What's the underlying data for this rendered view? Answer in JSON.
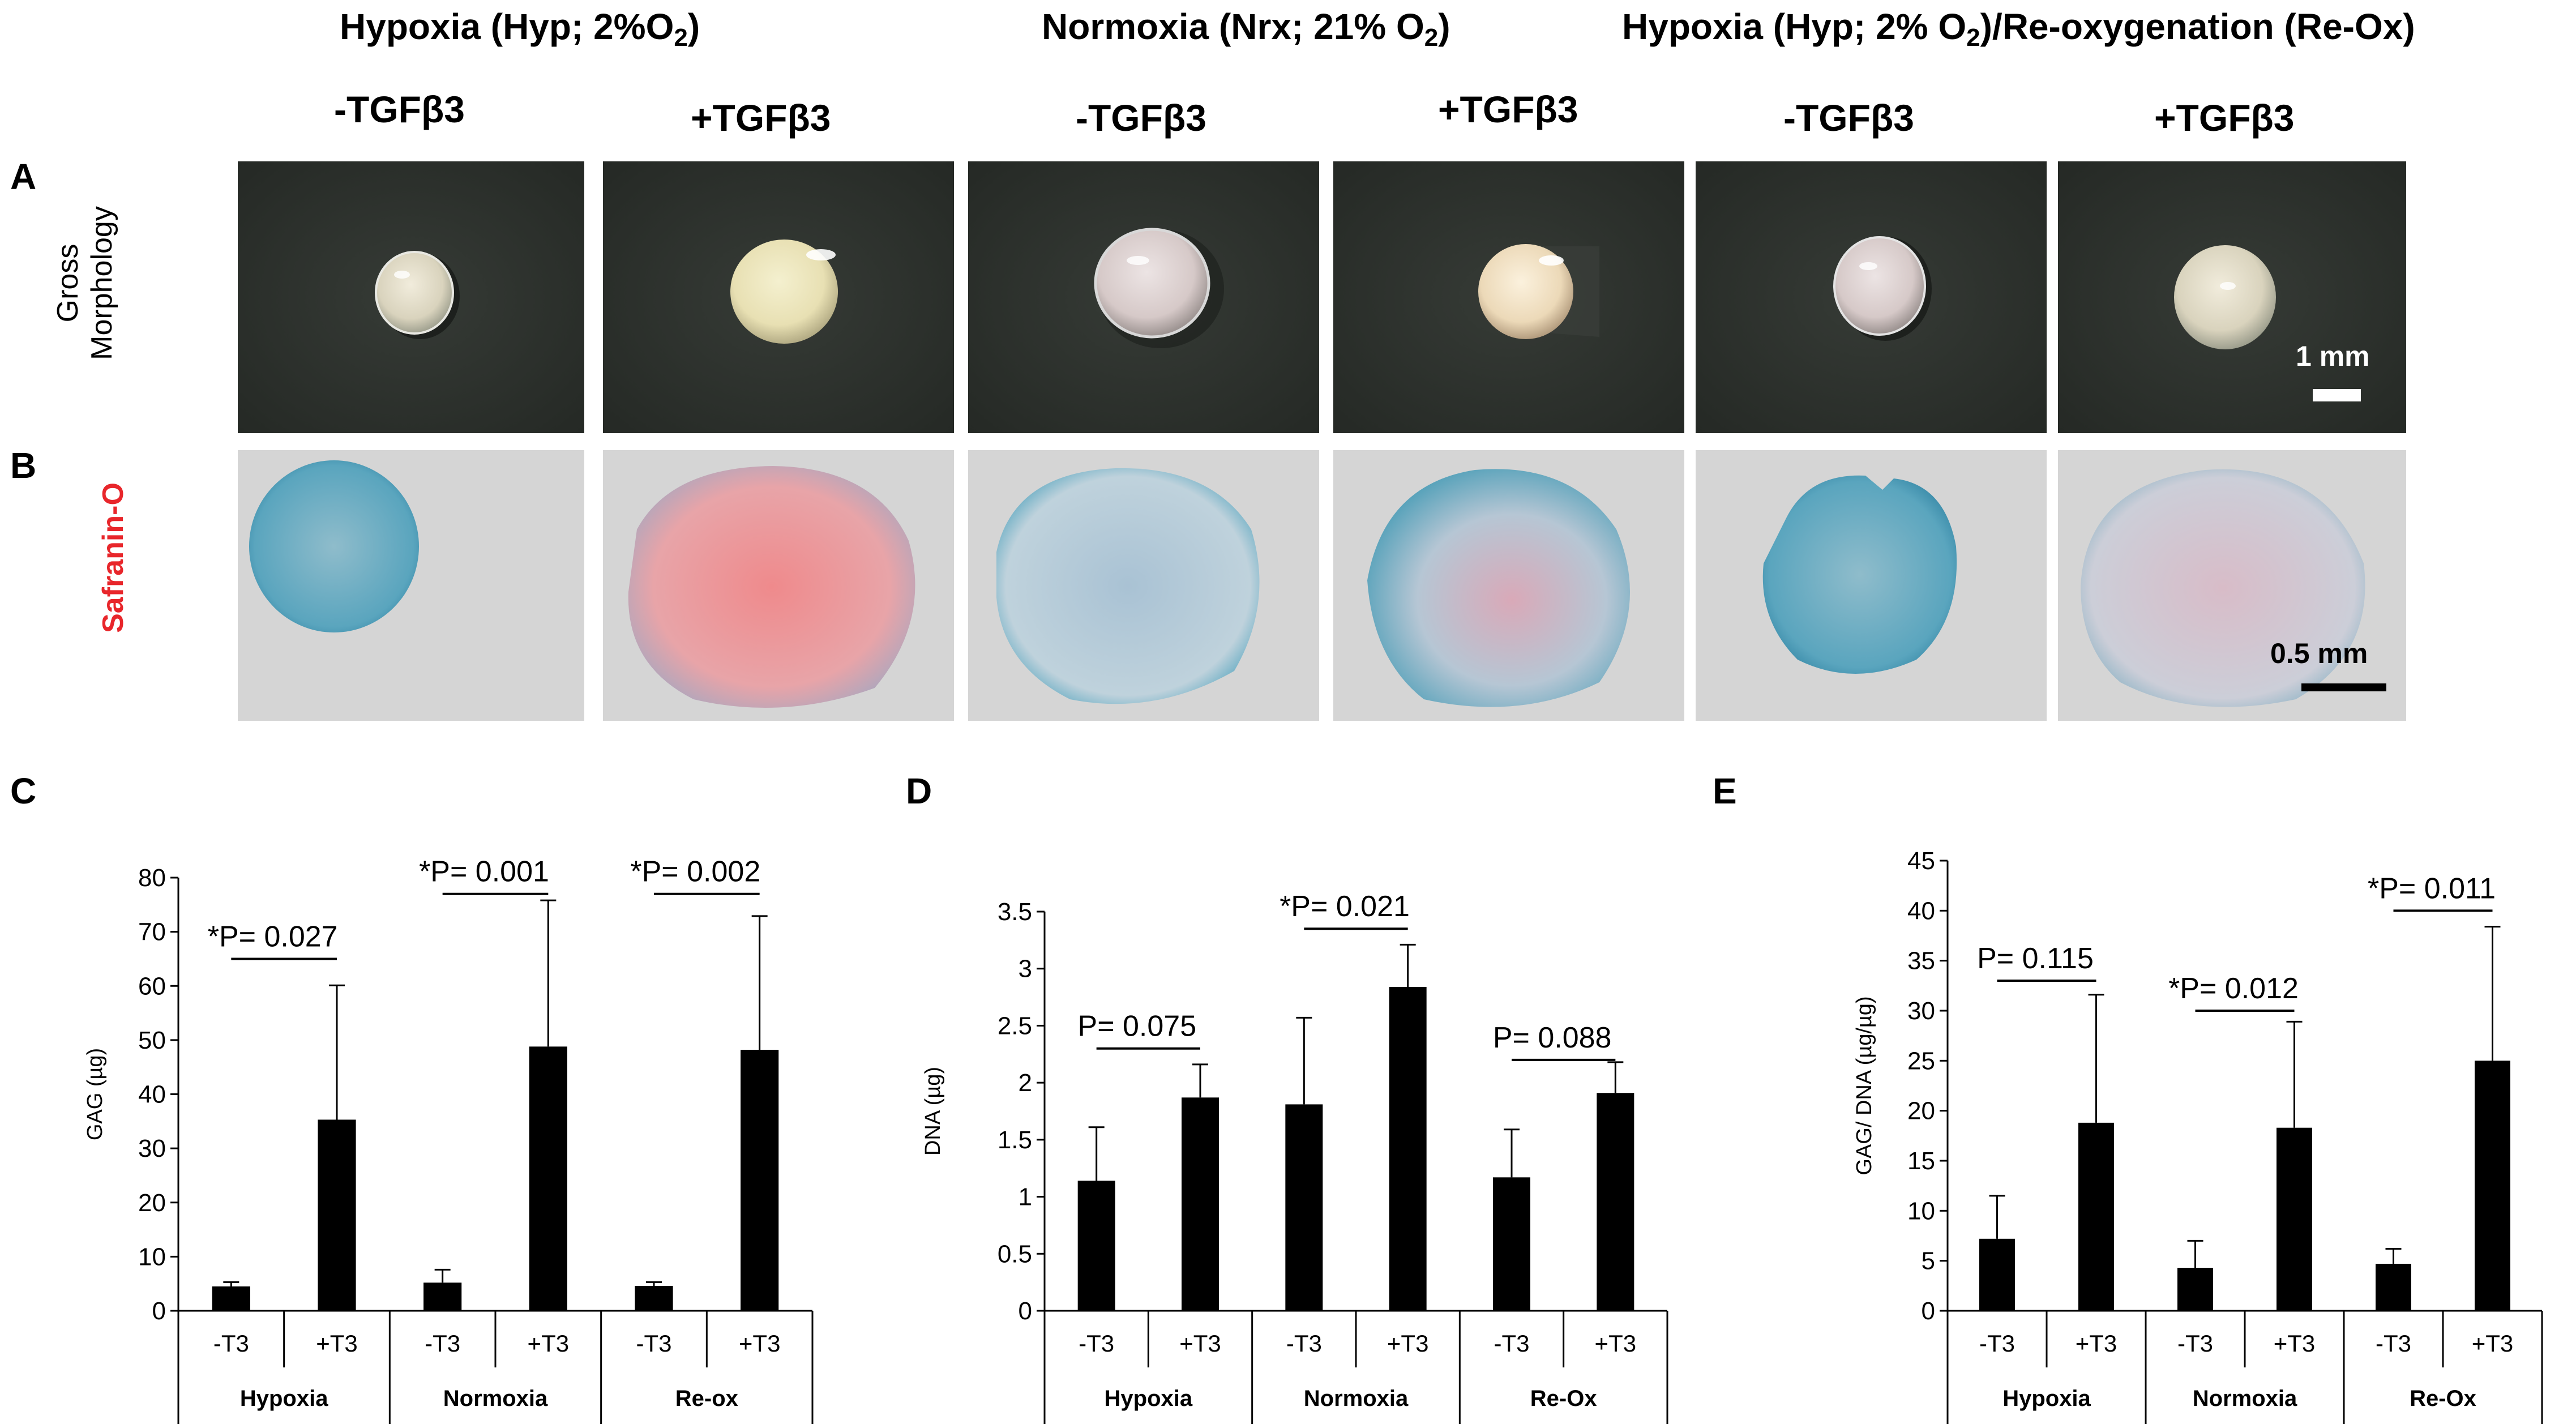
{
  "figure": {
    "panel_labels": [
      "A",
      "B",
      "C",
      "D",
      "E"
    ],
    "conditions": [
      {
        "title_parts": [
          "Hypoxia (Hyp; 2%O",
          "2",
          ")"
        ]
      },
      {
        "title_parts": [
          "Normoxia (Nrx; 21% O",
          "2",
          ")"
        ]
      },
      {
        "title_parts": [
          "Hypoxia (Hyp; 2% O",
          "2",
          ")/Re-oxygenation (Re-Ox)"
        ]
      }
    ],
    "columns": [
      "-TGFβ3",
      "+TGFβ3",
      "-TGFβ3",
      "+TGFβ3",
      "-TGFβ3",
      "+TGFβ3"
    ],
    "row_labels": {
      "gross": [
        "Gross",
        "Morphology"
      ],
      "safranin": "Safranin-O"
    },
    "scalebars": {
      "gross": "1 mm",
      "safranin": "0.5 mm"
    },
    "colors": {
      "safranin_label": "#e8262b",
      "gross_bg": "#2c302c",
      "histo_bg": "#d5d5d5",
      "gag_stain": "#e85a5e",
      "fast_green": "#3f95b5"
    }
  },
  "chart_data": [
    {
      "panel": "C",
      "type": "bar",
      "ylabel": "GAG (µg)",
      "ylim": [
        0,
        80
      ],
      "yticks": [
        0,
        10,
        20,
        30,
        40,
        50,
        60,
        70,
        80
      ],
      "categories": [
        "-T3",
        "+T3",
        "-T3",
        "+T3",
        "-T3",
        "+T3"
      ],
      "groups": [
        "Hypoxia",
        "Normoxia",
        "Re-ox"
      ],
      "values": [
        4.5,
        35.3,
        5.2,
        48.8,
        4.6,
        48.2
      ],
      "errors": [
        0.8,
        24.8,
        2.4,
        27,
        0.7,
        24.7
      ],
      "annotations": [
        {
          "text": "*P= 0.027",
          "pair": [
            0,
            1
          ],
          "y": 65
        },
        {
          "text": "*P= 0.001",
          "pair": [
            2,
            3
          ],
          "y": 77
        },
        {
          "text": "*P= 0.002",
          "pair": [
            4,
            5
          ],
          "y": 77
        }
      ]
    },
    {
      "panel": "D",
      "type": "bar",
      "ylabel": "DNA (µg)",
      "ylim": [
        0,
        3.5
      ],
      "yticks": [
        0,
        0.5,
        1,
        1.5,
        2,
        2.5,
        3,
        3.5
      ],
      "categories": [
        "-T3",
        "+T3",
        "-T3",
        "+T3",
        "-T3",
        "+T3"
      ],
      "groups": [
        "Hypoxia",
        "Normoxia",
        "Re-Ox"
      ],
      "values": [
        1.14,
        1.87,
        1.81,
        2.84,
        1.17,
        1.91
      ],
      "errors": [
        0.47,
        0.29,
        0.76,
        0.37,
        0.42,
        0.27
      ],
      "annotations": [
        {
          "text": "P= 0.075",
          "pair": [
            0,
            1
          ],
          "y": 2.3
        },
        {
          "text": "*P= 0.021",
          "pair": [
            2,
            3
          ],
          "y": 3.35
        },
        {
          "text": "P= 0.088",
          "pair": [
            4,
            5
          ],
          "y": 2.2
        }
      ]
    },
    {
      "panel": "E",
      "type": "bar",
      "ylabel": "GAG/ DNA (µg/µg)",
      "ylim": [
        0,
        45
      ],
      "yticks": [
        0,
        5,
        10,
        15,
        20,
        25,
        30,
        35,
        40,
        45
      ],
      "categories": [
        "-T3",
        "+T3",
        "-T3",
        "+T3",
        "-T3",
        "+T3"
      ],
      "groups": [
        "Hypoxia",
        "Normoxia",
        "Re-Ox"
      ],
      "values": [
        7.2,
        18.8,
        4.3,
        18.3,
        4.7,
        25
      ],
      "errors": [
        4.3,
        12.8,
        2.7,
        10.6,
        1.5,
        13.4
      ],
      "annotations": [
        {
          "text": "P= 0.115",
          "pair": [
            0,
            1
          ],
          "y": 33
        },
        {
          "text": "*P= 0.012",
          "pair": [
            2,
            3
          ],
          "y": 30
        },
        {
          "text": "*P= 0.011",
          "pair": [
            4,
            5
          ],
          "y": 40
        }
      ]
    }
  ]
}
